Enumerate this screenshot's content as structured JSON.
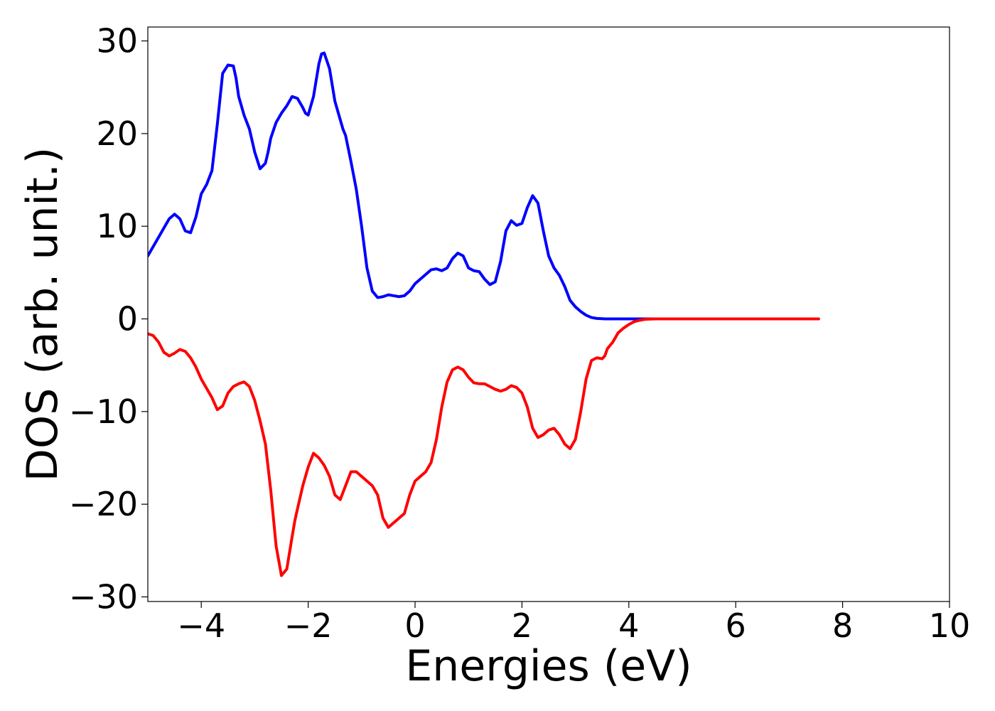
{
  "chart_data": {
    "type": "line",
    "title": "",
    "xlabel": "Energies (eV)",
    "ylabel": "DOS (arb. unit.)",
    "xlim": [
      -5,
      10
    ],
    "ylim": [
      -30.5,
      31.5
    ],
    "xticks": [
      -4,
      -2,
      0,
      2,
      4,
      6,
      8,
      10
    ],
    "yticks": [
      -30,
      -20,
      -10,
      0,
      10,
      20,
      30
    ],
    "x_tick_labels": [
      "−4",
      "−2",
      "0",
      "2",
      "4",
      "6",
      "8",
      "10"
    ],
    "y_tick_labels": [
      "−30",
      "−20",
      "−10",
      "0",
      "10",
      "20",
      "30"
    ],
    "grid": false,
    "legend": "none",
    "series": [
      {
        "color": "#0000ff",
        "x": [
          -5.0,
          -4.8,
          -4.7,
          -4.6,
          -4.5,
          -4.4,
          -4.3,
          -4.2,
          -4.1,
          -4.0,
          -3.9,
          -3.8,
          -3.7,
          -3.6,
          -3.5,
          -3.4,
          -3.35,
          -3.3,
          -3.2,
          -3.1,
          -3.0,
          -2.9,
          -2.8,
          -2.75,
          -2.7,
          -2.6,
          -2.5,
          -2.4,
          -2.3,
          -2.2,
          -2.1,
          -2.05,
          -2.0,
          -1.9,
          -1.8,
          -1.75,
          -1.7,
          -1.6,
          -1.5,
          -1.4,
          -1.35,
          -1.3,
          -1.2,
          -1.1,
          -1.0,
          -0.9,
          -0.8,
          -0.7,
          -0.6,
          -0.5,
          -0.4,
          -0.3,
          -0.2,
          -0.1,
          0.0,
          0.1,
          0.2,
          0.3,
          0.4,
          0.5,
          0.6,
          0.7,
          0.8,
          0.9,
          1.0,
          1.1,
          1.2,
          1.3,
          1.4,
          1.5,
          1.6,
          1.7,
          1.8,
          1.9,
          2.0,
          2.1,
          2.2,
          2.3,
          2.4,
          2.5,
          2.6,
          2.7,
          2.8,
          2.9,
          3.0,
          3.1,
          3.2,
          3.3,
          3.4,
          3.5,
          3.55,
          3.6,
          3.7,
          3.8,
          3.9,
          4.0,
          4.1,
          4.2,
          4.3,
          4.4,
          4.5,
          4.6,
          4.7,
          4.8,
          4.9,
          5.0,
          5.2,
          5.4,
          5.6,
          5.8,
          6.0,
          6.5,
          7.0,
          7.55
        ],
        "y": [
          6.8,
          8.8,
          9.8,
          10.8,
          11.3,
          10.8,
          9.5,
          9.3,
          11.0,
          13.5,
          14.5,
          16.0,
          21.0,
          26.5,
          27.4,
          27.3,
          26.0,
          24.0,
          22.0,
          20.5,
          18.0,
          16.2,
          16.8,
          18.0,
          19.5,
          21.2,
          22.2,
          23.0,
          24.0,
          23.8,
          22.8,
          22.2,
          22.0,
          24.0,
          27.5,
          28.6,
          28.7,
          27.0,
          23.5,
          21.5,
          20.5,
          19.8,
          17.0,
          14.0,
          10.0,
          5.5,
          3.0,
          2.3,
          2.4,
          2.6,
          2.5,
          2.4,
          2.5,
          3.0,
          3.8,
          4.3,
          4.8,
          5.3,
          5.4,
          5.2,
          5.5,
          6.5,
          7.1,
          6.8,
          5.5,
          5.2,
          5.1,
          4.3,
          3.7,
          4.0,
          6.2,
          9.5,
          10.6,
          10.1,
          10.3,
          12.0,
          13.3,
          12.5,
          9.5,
          6.8,
          5.5,
          4.7,
          3.5,
          2.0,
          1.3,
          0.8,
          0.4,
          0.15,
          0.05,
          0.02,
          0.0,
          0.0,
          0.0,
          0.0,
          0.0,
          0.0,
          0.0,
          0.0,
          0.0,
          0.0,
          0.0,
          0.0,
          0.0,
          0.0,
          0.0,
          0.0,
          0.0,
          0.0,
          0.0,
          0.0,
          0.0,
          0.0,
          0.0,
          0.0
        ]
      },
      {
        "color": "#ff0000",
        "x": [
          -5.0,
          -4.9,
          -4.8,
          -4.7,
          -4.6,
          -4.5,
          -4.4,
          -4.3,
          -4.2,
          -4.1,
          -4.0,
          -3.9,
          -3.8,
          -3.7,
          -3.6,
          -3.5,
          -3.4,
          -3.3,
          -3.2,
          -3.1,
          -3.0,
          -2.9,
          -2.8,
          -2.7,
          -2.6,
          -2.5,
          -2.4,
          -2.3,
          -2.25,
          -2.2,
          -2.1,
          -2.0,
          -1.9,
          -1.8,
          -1.7,
          -1.6,
          -1.5,
          -1.4,
          -1.3,
          -1.2,
          -1.1,
          -1.0,
          -0.9,
          -0.8,
          -0.7,
          -0.6,
          -0.5,
          -0.4,
          -0.3,
          -0.2,
          -0.1,
          0.0,
          0.1,
          0.2,
          0.3,
          0.4,
          0.5,
          0.6,
          0.7,
          0.8,
          0.9,
          1.0,
          1.1,
          1.2,
          1.3,
          1.4,
          1.5,
          1.6,
          1.7,
          1.8,
          1.9,
          2.0,
          2.1,
          2.2,
          2.3,
          2.4,
          2.5,
          2.6,
          2.7,
          2.8,
          2.9,
          3.0,
          3.1,
          3.2,
          3.3,
          3.4,
          3.5,
          3.55,
          3.6,
          3.7,
          3.75,
          3.8,
          3.9,
          4.0,
          4.1,
          4.2,
          4.3,
          4.4,
          4.5,
          4.6,
          4.7,
          4.8,
          4.9,
          5.0,
          5.2,
          5.4,
          5.6,
          6.0,
          6.5,
          7.0,
          7.55
        ],
        "y": [
          -1.6,
          -1.8,
          -2.5,
          -3.6,
          -4.0,
          -3.7,
          -3.3,
          -3.5,
          -4.2,
          -5.2,
          -6.5,
          -7.5,
          -8.5,
          -9.8,
          -9.4,
          -8.0,
          -7.3,
          -7.0,
          -6.8,
          -7.3,
          -8.8,
          -11.0,
          -13.5,
          -18.5,
          -24.5,
          -27.7,
          -27.0,
          -23.5,
          -21.8,
          -20.5,
          -18.0,
          -16.0,
          -14.5,
          -15.0,
          -15.8,
          -17.0,
          -19.0,
          -19.5,
          -18.0,
          -16.5,
          -16.5,
          -17.0,
          -17.5,
          -18.0,
          -19.0,
          -21.5,
          -22.5,
          -22.0,
          -21.5,
          -21.0,
          -19.0,
          -17.5,
          -17.0,
          -16.5,
          -15.5,
          -13.0,
          -9.5,
          -6.8,
          -5.5,
          -5.2,
          -5.5,
          -6.3,
          -6.9,
          -7.0,
          -7.0,
          -7.3,
          -7.6,
          -7.8,
          -7.6,
          -7.2,
          -7.4,
          -8.0,
          -9.5,
          -11.8,
          -12.8,
          -12.5,
          -12.0,
          -11.8,
          -12.5,
          -13.5,
          -14.0,
          -13.0,
          -10.0,
          -6.5,
          -4.5,
          -4.2,
          -4.3,
          -4.0,
          -3.2,
          -2.5,
          -2.0,
          -1.5,
          -1.0,
          -0.6,
          -0.3,
          -0.15,
          -0.05,
          -0.02,
          0.0,
          0.0,
          0.0,
          0.0,
          0.0,
          0.0,
          0.0,
          0.0,
          0.0,
          0.0,
          0.0,
          0.0,
          0.0
        ]
      }
    ]
  }
}
